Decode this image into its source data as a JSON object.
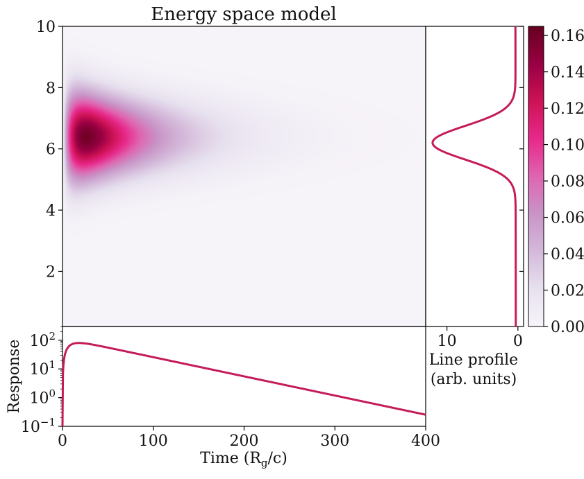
{
  "chart_data": [
    {
      "type": "heatmap",
      "title": "Energy space model",
      "xlim": [
        0,
        400
      ],
      "ylim": [
        0.2,
        10
      ],
      "yticks": [
        2,
        4,
        6,
        8,
        10
      ],
      "x_ticks_shown": false,
      "colormap": "PuRd",
      "peak": {
        "time": 35,
        "energy": 6.4,
        "value": 0.16
      },
      "energy_width": 0.85,
      "decay": {
        "rise_rate": 0.065,
        "fall_rate": 0.0145
      }
    },
    {
      "type": "line",
      "xlabel": "Line profile",
      "xlabel2": "(arb. units)",
      "xlim": [
        13,
        -0.8
      ],
      "xticks": [
        10,
        0
      ],
      "ylim": [
        0.2,
        10
      ],
      "series": [
        {
          "center": 6.2,
          "width": 0.55,
          "peak": 12.0,
          "baseline": 0.3,
          "color": "#c51b5a"
        }
      ]
    },
    {
      "type": "line",
      "xlabel": "Time (R",
      "xlabel_sub": "g",
      "xlabel_tail": "/c)",
      "ylabel": "Response",
      "xlim": [
        0,
        400
      ],
      "xticks": [
        0,
        100,
        200,
        300,
        400
      ],
      "yscale": "log",
      "ylim": [
        0.1,
        300
      ],
      "yticks": [
        {
          "value": 0.1,
          "base": "10",
          "exp": "−1"
        },
        {
          "value": 1,
          "base": "10",
          "exp": "0"
        },
        {
          "value": 10,
          "base": "10",
          "exp": "1"
        },
        {
          "value": 100,
          "base": "10",
          "exp": "2"
        }
      ],
      "series": [
        {
          "peak_time": 25,
          "peak_value": 80,
          "value_at_400": 0.25,
          "color": "#c51b5a"
        }
      ]
    },
    {
      "type": "colorbar",
      "range": [
        0,
        0.165
      ],
      "ticks": [
        "0.00",
        "0.02",
        "0.04",
        "0.06",
        "0.08",
        "0.10",
        "0.12",
        "0.14",
        "0.16"
      ],
      "colormap": "PuRd"
    }
  ]
}
